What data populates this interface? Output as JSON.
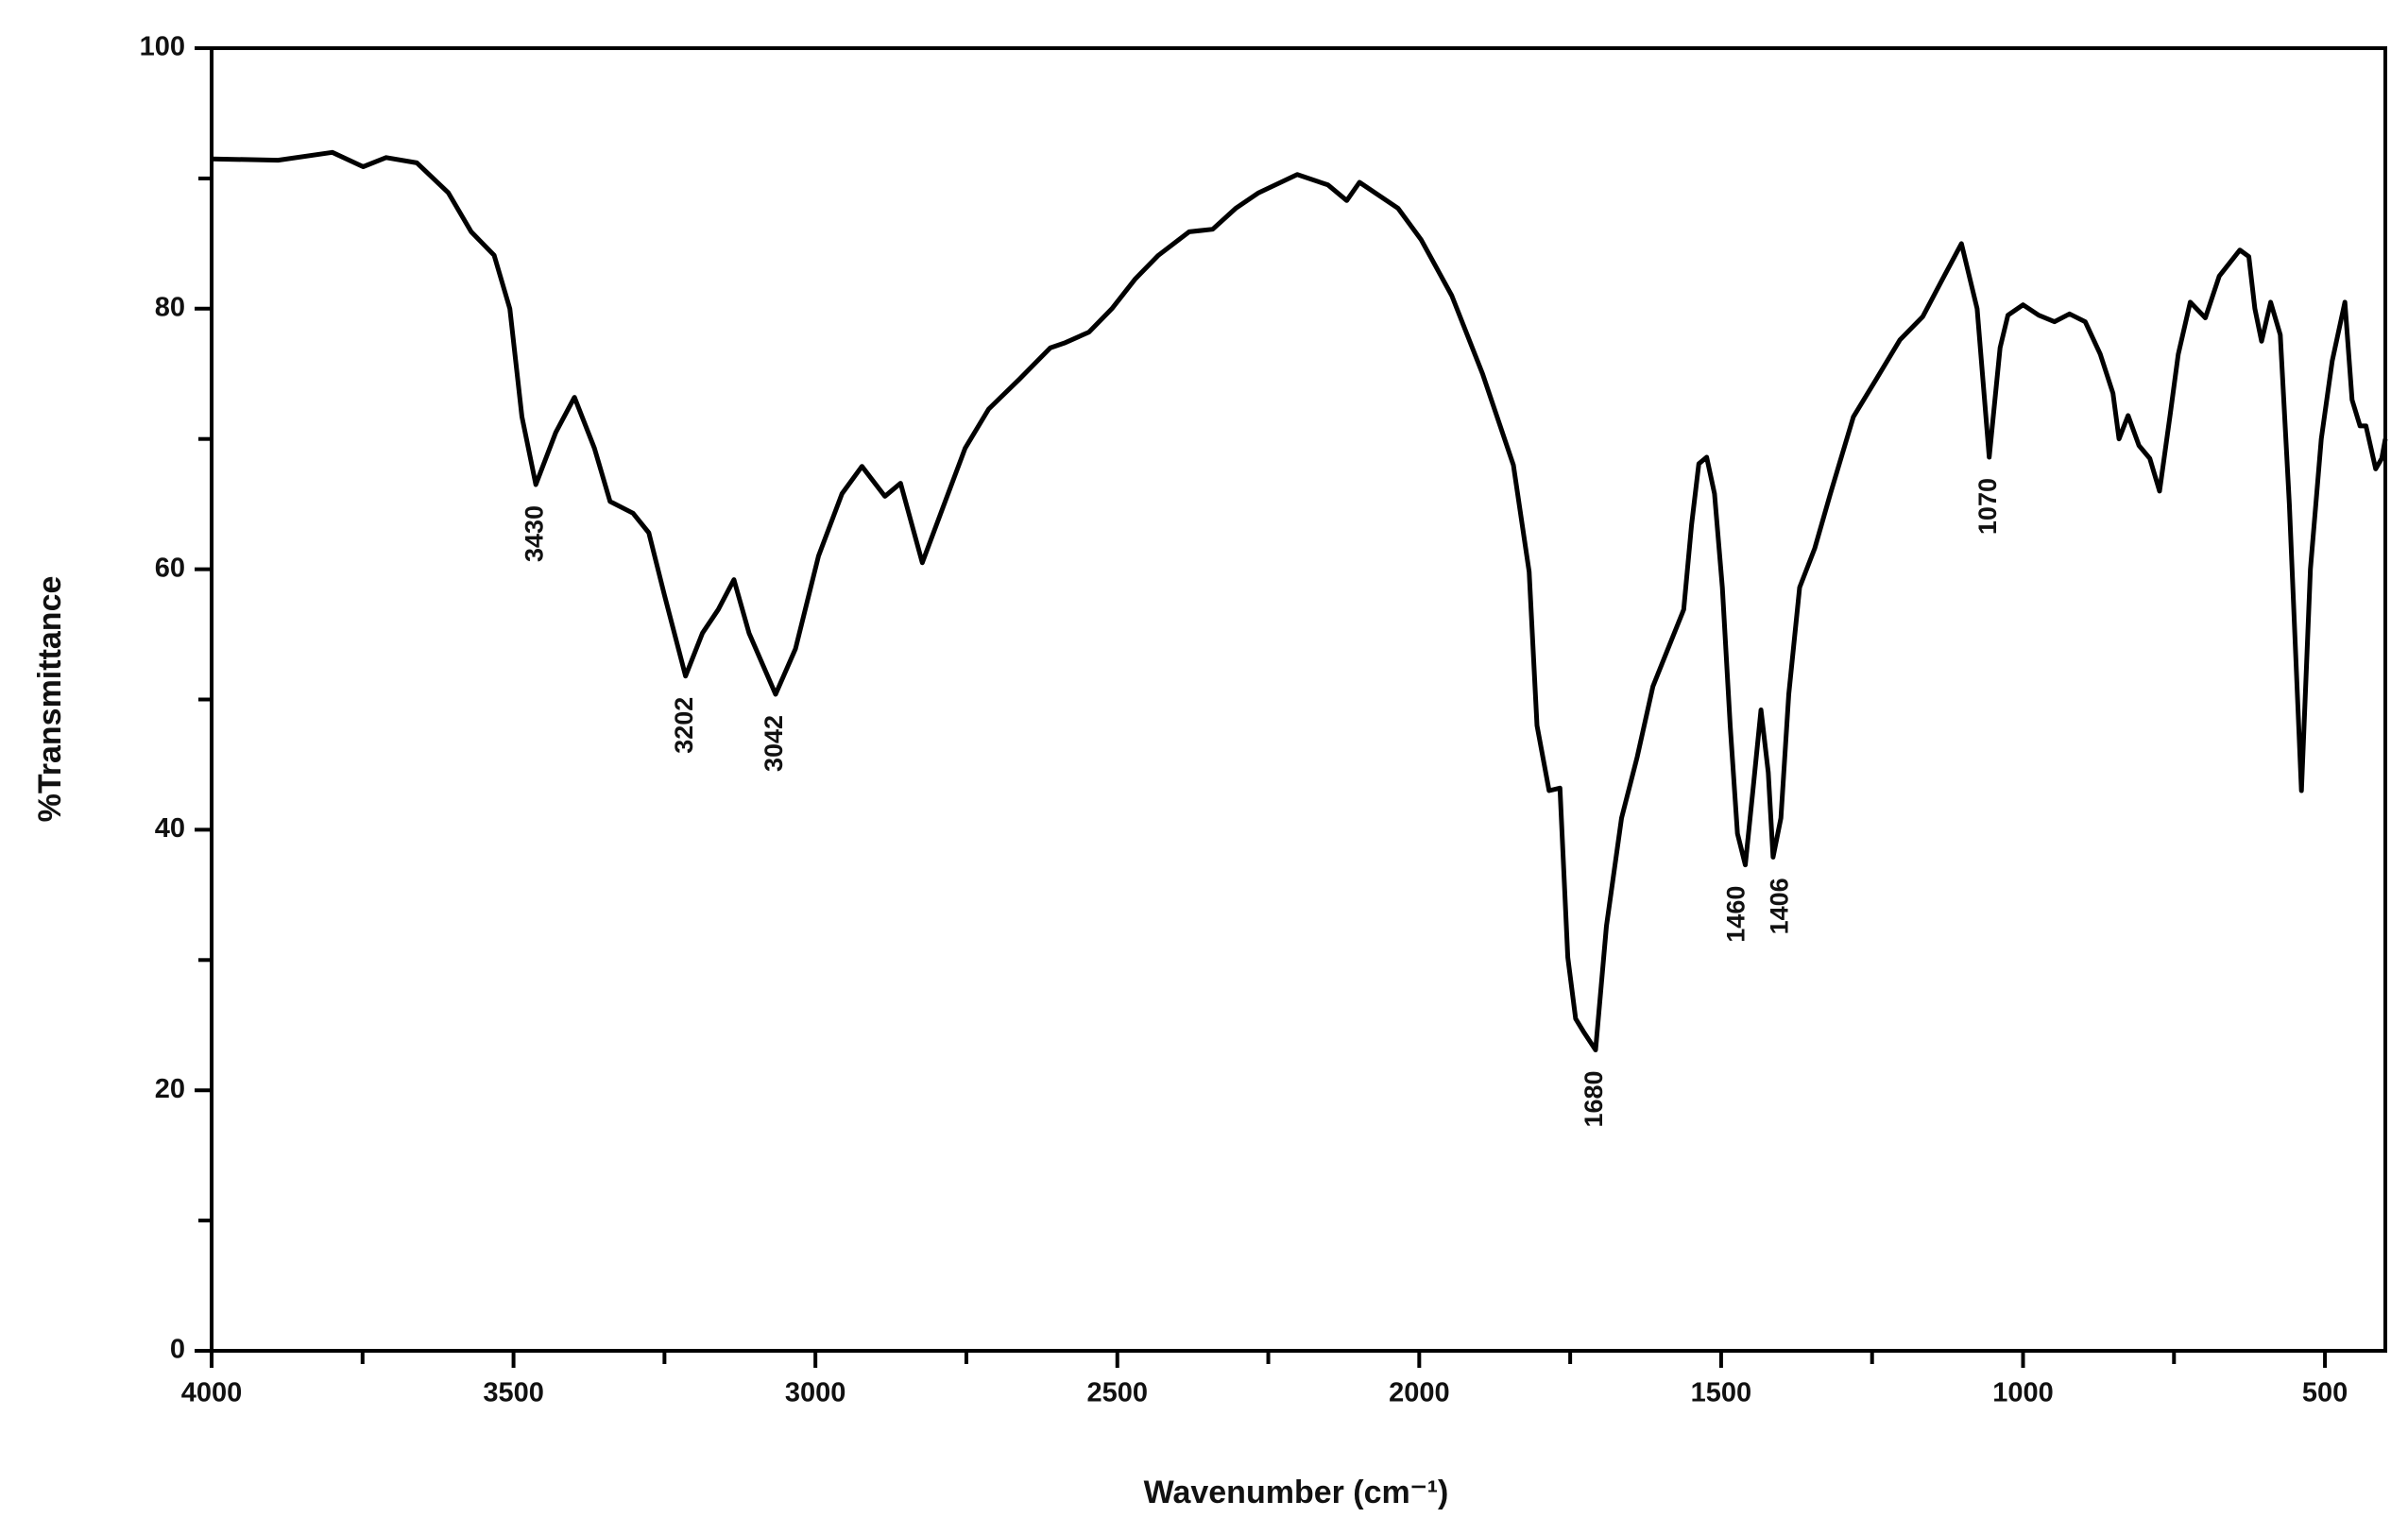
{
  "chart_data": {
    "type": "line",
    "xlabel": "Wavenumber (cm⁻¹)",
    "ylabel": "%Transmittance",
    "color": "#000000",
    "x": [
      4000,
      3890,
      3800,
      3749,
      3711,
      3660,
      3608,
      3570,
      3532,
      3506,
      3486,
      3463,
      3430,
      3399,
      3366,
      3340,
      3302,
      3276,
      3250,
      3215,
      3187,
      3161,
      3135,
      3110,
      3066,
      3033,
      2995,
      2956,
      2923,
      2885,
      2859,
      2823,
      2790,
      2752,
      2713,
      2662,
      2611,
      2586,
      2547,
      2509,
      2470,
      2432,
      2381,
      2342,
      2304,
      2266,
      2202,
      2151,
      2120,
      2099,
      2035,
      1997,
      1946,
      1895,
      1844,
      1818,
      1805,
      1785,
      1767,
      1754,
      1741,
      1728,
      1708,
      1690,
      1665,
      1639,
      1613,
      1588,
      1562,
      1549,
      1537,
      1524,
      1511,
      1498,
      1485,
      1473,
      1460,
      1447,
      1434,
      1422,
      1414,
      1401,
      1388,
      1370,
      1345,
      1319,
      1281,
      1243,
      1204,
      1166,
      1133,
      1102,
      1076,
      1056,
      1038,
      1025,
      1000,
      974,
      948,
      923,
      897,
      872,
      851,
      841,
      826,
      808,
      790,
      774,
      756,
      743,
      723,
      698,
      675,
      641,
      626,
      616,
      605,
      590,
      574,
      559,
      539,
      524,
      506,
      488,
      467,
      455,
      442,
      432,
      416,
      406,
      400
    ],
    "values": [
      91.5,
      91.4,
      92,
      90.9,
      91.6,
      91.2,
      88.9,
      85.9,
      84.1,
      80,
      71.7,
      66.5,
      70.5,
      73.2,
      69.3,
      65.2,
      64.3,
      62.8,
      58,
      51.8,
      55.1,
      56.9,
      59.2,
      55.1,
      50.4,
      53.9,
      61,
      65.8,
      67.9,
      65.6,
      66.6,
      60.5,
      64.6,
      69.3,
      72.3,
      74.6,
      77,
      77.4,
      78.2,
      80,
      82.3,
      84.1,
      85.9,
      86.1,
      87.7,
      88.9,
      90.3,
      89.5,
      88.3,
      89.7,
      87.7,
      85.3,
      81,
      75,
      68,
      59.8,
      48,
      43,
      43.2,
      30.2,
      25.5,
      24.5,
      23.1,
      32.6,
      40.9,
      45.6,
      51,
      53.9,
      56.9,
      63.4,
      68.1,
      68.6,
      65.8,
      58.6,
      48,
      39.7,
      37.3,
      43.2,
      49.2,
      44.4,
      37.9,
      40.9,
      50.4,
      58.6,
      61.6,
      65.8,
      71.7,
      74.6,
      77.6,
      79.4,
      82.3,
      85,
      80,
      68.6,
      77,
      79.5,
      80.3,
      79.5,
      79,
      79.6,
      79,
      76.5,
      73.5,
      70,
      71.8,
      69.5,
      68.5,
      66,
      72,
      76.5,
      80.5,
      79.3,
      82.5,
      84.5,
      84,
      80,
      77.5,
      80.5,
      78,
      65,
      43,
      60,
      70,
      76,
      80.5,
      73,
      71,
      71,
      67.7,
      68.5,
      70
    ],
    "xlim": [
      4000,
      400
    ],
    "ylim": [
      0,
      100
    ],
    "xticks": [
      4000,
      3500,
      3000,
      2500,
      2000,
      1500,
      1000,
      500
    ],
    "xminor_ticks": [
      3750,
      3250,
      2750,
      2250,
      1750,
      1250,
      750
    ],
    "yticks": [
      0,
      20,
      40,
      60,
      80,
      100
    ],
    "yminor_ticks": [
      10,
      30,
      50,
      70,
      90
    ],
    "annotations": [
      {
        "text": "3430",
        "x": 3463,
        "y": 66.5
      },
      {
        "text": "3202",
        "x": 3215,
        "y": 51.8
      },
      {
        "text": "3042",
        "x": 3066,
        "y": 50.4
      },
      {
        "text": "1680",
        "x": 1708,
        "y": 23.1
      },
      {
        "text": "1460",
        "x": 1473,
        "y": 37.3
      },
      {
        "text": "1406",
        "x": 1401,
        "y": 37.9
      },
      {
        "text": "1070",
        "x": 1056,
        "y": 68.6
      }
    ]
  }
}
